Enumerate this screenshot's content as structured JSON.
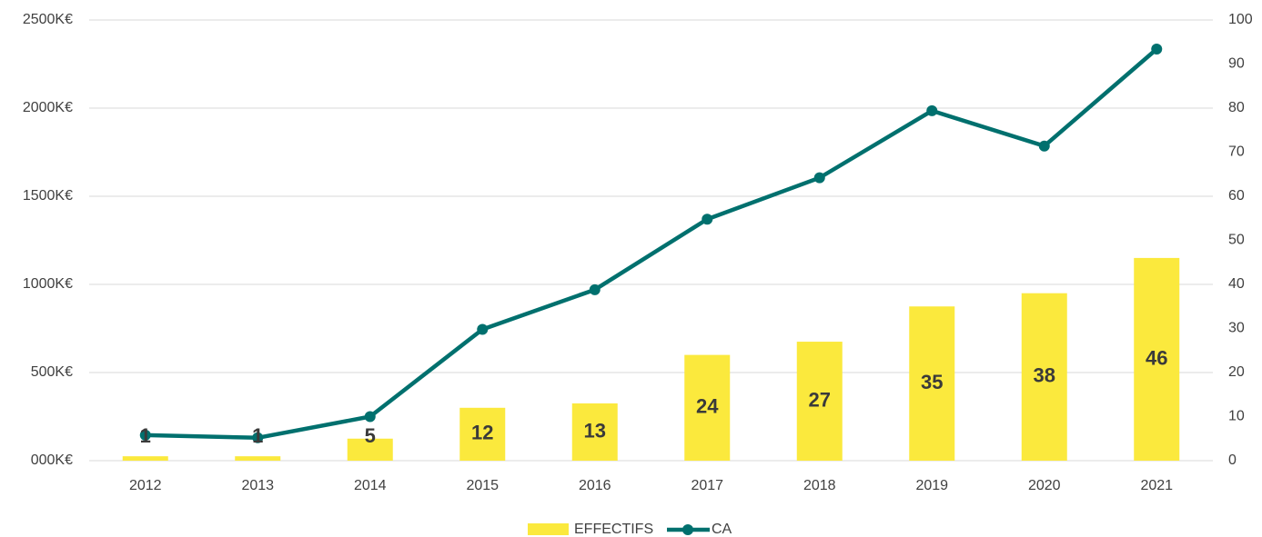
{
  "chart_data": {
    "type": "bar-line",
    "categories": [
      "2012",
      "2013",
      "2014",
      "2015",
      "2016",
      "2017",
      "2018",
      "2019",
      "2020",
      "2021"
    ],
    "series": [
      {
        "name": "EFFECTIFS",
        "type": "bar",
        "axis": "y2",
        "color": "#fbe93d",
        "values": [
          1,
          1,
          5,
          12,
          13,
          24,
          27,
          35,
          38,
          46
        ]
      },
      {
        "name": "CA",
        "type": "line",
        "axis": "y",
        "color": "#00706e",
        "values": [
          145,
          130,
          250,
          745,
          970,
          1370,
          1605,
          1985,
          1785,
          2335
        ]
      }
    ],
    "ylim": [
      0,
      2500
    ],
    "yticks": [
      {
        "value": 0,
        "label": "000K€"
      },
      {
        "value": 500,
        "label": "500K€"
      },
      {
        "value": 1000,
        "label": "1000K€"
      },
      {
        "value": 1500,
        "label": "1500K€"
      },
      {
        "value": 2000,
        "label": "2000K€"
      },
      {
        "value": 2500,
        "label": "2500K€"
      }
    ],
    "y2lim": [
      0,
      100
    ],
    "y2ticks": [
      0,
      10,
      20,
      30,
      40,
      50,
      60,
      70,
      80,
      90,
      100
    ],
    "grid": true,
    "legend": "bottom"
  }
}
